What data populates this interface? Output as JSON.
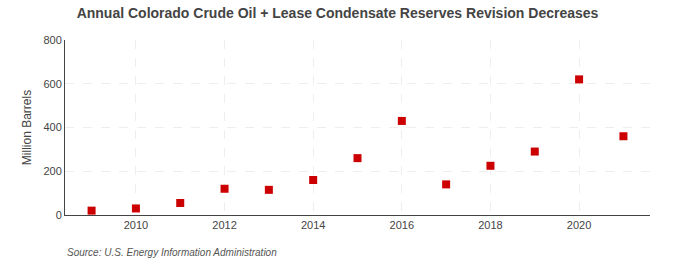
{
  "chart_data": {
    "type": "scatter",
    "title": "Annual Colorado Crude Oil + Lease Condensate Reserves Revision Decreases",
    "ylabel": "Million Barrels",
    "annotation": "Source: U.S. Energy Information Administration",
    "x": [
      2009,
      2010,
      2011,
      2012,
      2013,
      2014,
      2015,
      2016,
      2017,
      2018,
      2019,
      2020,
      2021
    ],
    "values": [
      20,
      30,
      55,
      120,
      115,
      160,
      260,
      430,
      140,
      225,
      290,
      620,
      360
    ],
    "color": "#cc0000",
    "marker": "square",
    "xlim": [
      2008.4,
      2021.6
    ],
    "xticks": [
      2010,
      2012,
      2014,
      2016,
      2018,
      2020
    ],
    "ylim": [
      0,
      800
    ],
    "yticks": [
      0,
      200,
      400,
      600,
      800
    ],
    "grid": true
  }
}
